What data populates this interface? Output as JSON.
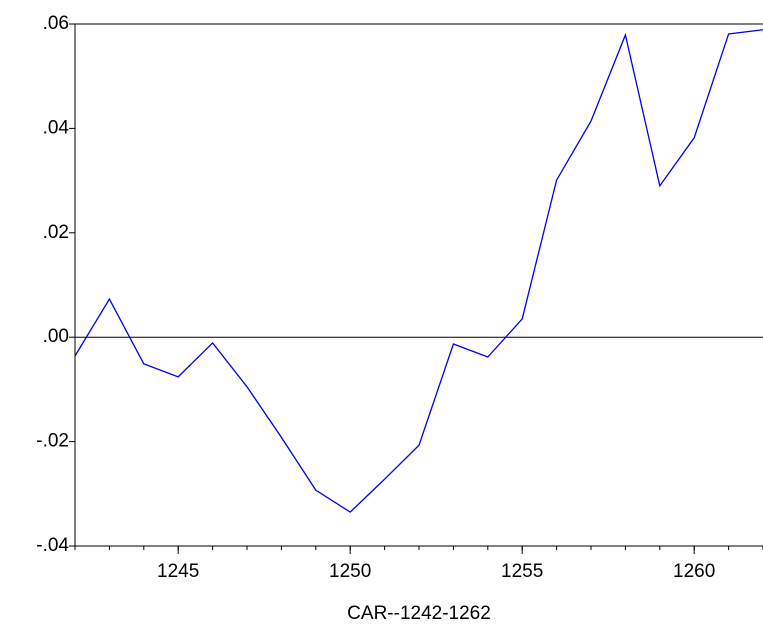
{
  "chart_data": {
    "type": "line",
    "xlabel": "CAR--1242-1262",
    "x": [
      1242,
      1243,
      1244,
      1245,
      1246,
      1247,
      1248,
      1249,
      1250,
      1251,
      1252,
      1253,
      1254,
      1255,
      1256,
      1257,
      1258,
      1259,
      1260,
      1261,
      1262
    ],
    "values": [
      -0.0036,
      0.0073,
      -0.0051,
      -0.0076,
      -0.0011,
      -0.0095,
      -0.0192,
      -0.0293,
      -0.0335,
      -0.0272,
      -0.0207,
      -0.0013,
      -0.0038,
      0.0035,
      0.0301,
      0.0414,
      0.0579,
      0.029,
      0.0382,
      0.0581,
      0.0589
    ],
    "color": "#0000ee",
    "xlim": [
      1242,
      1262
    ],
    "xticks": [
      1245,
      1250,
      1255,
      1260
    ],
    "ylim": [
      -0.04,
      0.06
    ],
    "yticks": [
      {
        "value": -0.04,
        "label": "-.04"
      },
      {
        "value": -0.02,
        "label": "-.02"
      },
      {
        "value": 0,
        "label": ".00"
      },
      {
        "value": 0.02,
        "label": ".02"
      },
      {
        "value": 0.04,
        "label": ".04"
      },
      {
        "value": 0.06,
        "label": ".06"
      }
    ],
    "zero_line": true,
    "minor_ticks": true,
    "grid": false
  }
}
